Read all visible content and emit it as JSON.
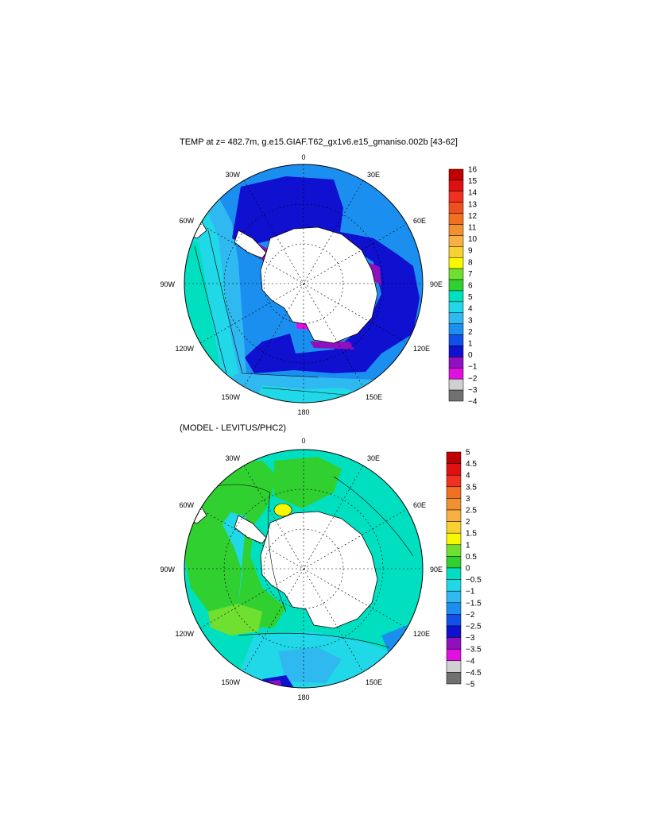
{
  "maps": [
    {
      "title": "TEMP at z= 482.7m, g.e15.GIAF.T62_gx1v6.e15_gmaniso.002b [43-62]",
      "longitude_labels": [
        "0",
        "30E",
        "60E",
        "90E",
        "120E",
        "150E",
        "180",
        "150W",
        "120W",
        "90W",
        "60W",
        "30W"
      ],
      "colorbar": {
        "labels": [
          "16",
          "15",
          "14",
          "13",
          "12",
          "11",
          "10",
          "9",
          "8",
          "7",
          "6",
          "5",
          "4",
          "3",
          "2",
          "1",
          "0",
          "−1",
          "−2",
          "−3",
          "−4"
        ],
        "colors": [
          "#c00000",
          "#e01010",
          "#f03020",
          "#f05020",
          "#f07020",
          "#f09030",
          "#f8b040",
          "#f8d030",
          "#f8f800",
          "#70e030",
          "#30d030",
          "#00e0c0",
          "#20d8e8",
          "#30b8f0",
          "#1a8ff0",
          "#1050e8",
          "#1010d0",
          "#9010c0",
          "#e010e0",
          "#d0d0d0",
          "#707070"
        ]
      }
    },
    {
      "title": "(MODEL - LEVITUS/PHC2)",
      "longitude_labels": [
        "0",
        "30E",
        "60E",
        "90E",
        "120E",
        "150E",
        "180",
        "150W",
        "120W",
        "90W",
        "60W",
        "30W"
      ],
      "colorbar": {
        "labels": [
          "5",
          "4.5",
          "4",
          "3.5",
          "3",
          "2.5",
          "2",
          "1.5",
          "1",
          "0.5",
          "0",
          "−0.5",
          "−1",
          "−1.5",
          "−2",
          "−2.5",
          "−3",
          "−3.5",
          "−4",
          "−4.5",
          "−5"
        ],
        "colors": [
          "#c00000",
          "#e01010",
          "#f03020",
          "#f07020",
          "#f09030",
          "#f8b040",
          "#f8d030",
          "#f8f800",
          "#70e030",
          "#30d030",
          "#00e0c0",
          "#20d8e8",
          "#30b8f0",
          "#1a8ff0",
          "#1050e8",
          "#1010d0",
          "#9010c0",
          "#e010e0",
          "#d0d0d0",
          "#707070"
        ]
      }
    }
  ]
}
